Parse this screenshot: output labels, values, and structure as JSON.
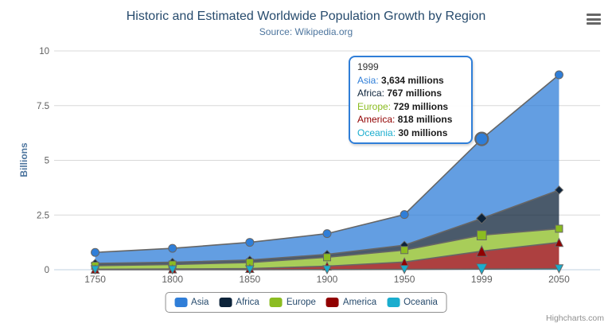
{
  "chart_data": {
    "type": "area",
    "stacking": "normal",
    "title": "Historic and Estimated Worldwide Population Growth by Region",
    "subtitle": "Source: Wikipedia.org",
    "categories": [
      "1750",
      "1800",
      "1850",
      "1900",
      "1950",
      "1999",
      "2050"
    ],
    "series": [
      {
        "name": "Asia",
        "color": "#2f7ed8",
        "marker": "circle",
        "values": [
          502,
          635,
          809,
          947,
          1402,
          3634,
          5268
        ]
      },
      {
        "name": "Africa",
        "color": "#0d233a",
        "marker": "diamond",
        "values": [
          106,
          107,
          111,
          133,
          221,
          767,
          1766
        ]
      },
      {
        "name": "Europe",
        "color": "#8bbc21",
        "marker": "square",
        "values": [
          163,
          203,
          276,
          408,
          547,
          729,
          628
        ]
      },
      {
        "name": "America",
        "color": "#910000",
        "marker": "triangle",
        "values": [
          18,
          31,
          54,
          156,
          339,
          818,
          1201
        ]
      },
      {
        "name": "Oceania",
        "color": "#1aadce",
        "marker": "triangle-down",
        "values": [
          2,
          2,
          2,
          6,
          13,
          30,
          46
        ]
      }
    ],
    "values_unit": "millions",
    "ylabel": "Billions",
    "ylim": [
      0,
      10
    ],
    "yticks": [
      0,
      2.5,
      5,
      7.5,
      10
    ],
    "grid": "horizontal",
    "line_color": "#666666",
    "fill_opacity": 0.75,
    "legend_position": "bottom-center",
    "hover": {
      "category": "1999",
      "category_index": 5
    }
  },
  "tooltip": {
    "header": "1999",
    "border_color": "#2f7ed8",
    "rows": [
      {
        "label": "Asia",
        "color": "#2f7ed8",
        "value": "3,634 millions"
      },
      {
        "label": "Africa",
        "color": "#0d233a",
        "value": "767 millions"
      },
      {
        "label": "Europe",
        "color": "#8bbc21",
        "value": "729 millions"
      },
      {
        "label": "America",
        "color": "#910000",
        "value": "818 millions"
      },
      {
        "label": "Oceania",
        "color": "#1aadce",
        "value": "30 millions"
      }
    ]
  },
  "credits": {
    "label": "Highcharts.com"
  },
  "menu": {
    "icon": "hamburger-icon"
  }
}
